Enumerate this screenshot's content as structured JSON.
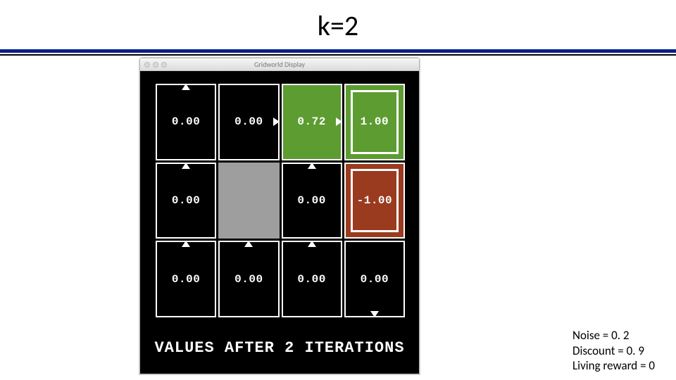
{
  "slide": {
    "title": "k=2",
    "rule_color": "#0a1e8a"
  },
  "window": {
    "title": "Gridworld Display"
  },
  "grid": {
    "rows": 3,
    "cols": 4,
    "cell_border_color": "#ffffff",
    "bg_color": "#000000",
    "wall_color": "#9e9e9e",
    "good_color": "#5d9c31",
    "bad_color": "#9a3b1f",
    "text_color": "#ffffff",
    "value_fontsize": 16,
    "cells": [
      [
        {
          "value": "0.00",
          "arrow": "up"
        },
        {
          "value": "0.00",
          "arrow": "right"
        },
        {
          "value": "0.72",
          "arrow": "right",
          "bg": "good"
        },
        {
          "value": "1.00",
          "terminal": true,
          "bg": "good"
        }
      ],
      [
        {
          "value": "0.00",
          "arrow": "up"
        },
        {
          "wall": true
        },
        {
          "value": "0.00",
          "arrow": "up"
        },
        {
          "value": "-1.00",
          "terminal": true,
          "bg": "bad"
        }
      ],
      [
        {
          "value": "0.00",
          "arrow": "up"
        },
        {
          "value": "0.00",
          "arrow": "up"
        },
        {
          "value": "0.00",
          "arrow": "up"
        },
        {
          "value": "0.00",
          "arrow": "down"
        }
      ]
    ]
  },
  "caption": "VALUES AFTER 2 ITERATIONS",
  "params": {
    "noise": "Noise = 0. 2",
    "discount": "Discount = 0. 9",
    "living": "Living reward = 0"
  }
}
